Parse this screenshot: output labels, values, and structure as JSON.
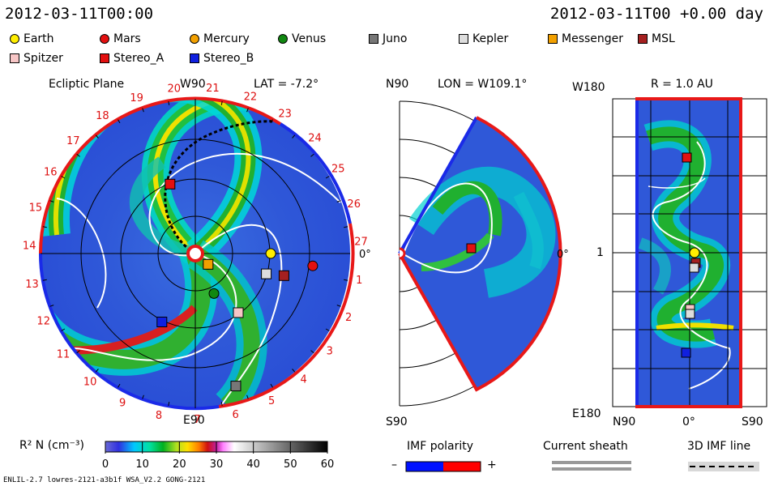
{
  "header": {
    "left_date": "2012-03-11T00:00",
    "right_date": "2012-03-11T00 +0.00 day"
  },
  "legend": [
    {
      "label": "Earth",
      "color": "#ffee00",
      "shape": "circle"
    },
    {
      "label": "Mars",
      "color": "#e31010",
      "shape": "circle"
    },
    {
      "label": "Mercury",
      "color": "#f2a000",
      "shape": "circle"
    },
    {
      "label": "Venus",
      "color": "#118811",
      "shape": "circle"
    },
    {
      "label": "Juno",
      "color": "#777777",
      "shape": "square"
    },
    {
      "label": "Kepler",
      "color": "#dddddd",
      "shape": "square"
    },
    {
      "label": "Messenger",
      "color": "#f2a000",
      "shape": "square"
    },
    {
      "label": "MSL",
      "color": "#a52020",
      "shape": "square"
    },
    {
      "label": "Spitzer",
      "color": "#f7c6c6",
      "shape": "square"
    },
    {
      "label": "Stereo_A",
      "color": "#e31010",
      "shape": "square"
    },
    {
      "label": "Stereo_B",
      "color": "#1020e0",
      "shape": "square"
    }
  ],
  "panels": {
    "ecliptic": {
      "title": "Ecliptic Plane",
      "top_label": "W90",
      "bottom_label": "E90",
      "right_label": "0°",
      "lat_label": "LAT = -7.2°"
    },
    "meridional": {
      "top_label": "N90",
      "bottom_label": "S90",
      "lon_label": "LON = W109.1°",
      "right_label": "0°"
    },
    "radial": {
      "top_label": "W180",
      "bottom_label": "E180",
      "r_label": "R = 1.0 AU",
      "mid_label": "1",
      "x_left": "N90",
      "x_mid": "0°",
      "x_right": "S90"
    }
  },
  "colorbar": {
    "label": "R² N (cm⁻³)",
    "ticks": [
      "0",
      "10",
      "20",
      "30",
      "40",
      "50",
      "60"
    ]
  },
  "imf_polarity": {
    "title": "IMF polarity",
    "minus": "–",
    "plus": "+"
  },
  "current_sheath": {
    "title": "Current sheath"
  },
  "imf_3d": {
    "title": "3D IMF line"
  },
  "footer": {
    "left": "ENLIL-2.7 lowres-2121-a3b1f WSA_V2.2 GONG-2121"
  },
  "chart_data": {
    "type": "scatter",
    "title": "",
    "rotation_numbers": [
      "19",
      "20",
      "21",
      "22",
      "23",
      "24",
      "25",
      "26",
      "27",
      "1",
      "2",
      "3",
      "4",
      "5",
      "6",
      "7",
      "8",
      "9",
      "10",
      "11",
      "12",
      "13",
      "14",
      "15",
      "16",
      "17",
      "18"
    ],
    "colorbar_range": [
      0,
      60
    ],
    "bodies_ecliptic": [
      {
        "name": "Earth",
        "r_au": 0.99,
        "lon_deg": 0
      },
      {
        "name": "Mars",
        "r_au": 1.55,
        "lon_deg": -6
      },
      {
        "name": "Mercury",
        "r_au": 0.22,
        "lon_deg": -40
      },
      {
        "name": "Venus",
        "r_au": 0.58,
        "lon_deg": -65
      },
      {
        "name": "Juno",
        "r_au": 1.82,
        "lon_deg": -73
      },
      {
        "name": "Kepler",
        "r_au": 0.97,
        "lon_deg": -16
      },
      {
        "name": "Messenger",
        "r_au": 0.22,
        "lon_deg": -40
      },
      {
        "name": "MSL",
        "r_au": 1.2,
        "lon_deg": -14
      },
      {
        "name": "Spitzer",
        "r_au": 0.96,
        "lon_deg": -54
      },
      {
        "name": "Stereo_A",
        "r_au": 0.97,
        "lon_deg": 110
      },
      {
        "name": "Stereo_B",
        "r_au": 1.0,
        "lon_deg": -116
      }
    ]
  }
}
